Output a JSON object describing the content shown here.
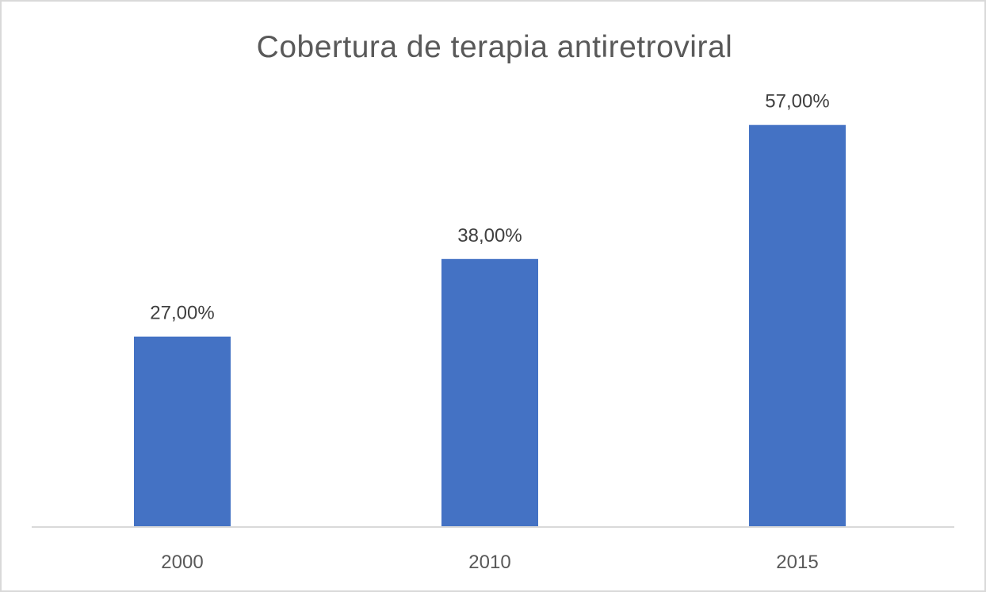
{
  "chart_data": {
    "type": "bar",
    "title": "Cobertura de terapia antiretroviral",
    "categories": [
      "2000",
      "2010",
      "2015"
    ],
    "values": [
      27,
      38,
      57
    ],
    "value_labels": [
      "27,00%",
      "38,00%",
      "57,00%"
    ],
    "ylim": [
      0,
      60
    ],
    "grid": false,
    "legend": "none",
    "bar_color": "#4472c4"
  }
}
